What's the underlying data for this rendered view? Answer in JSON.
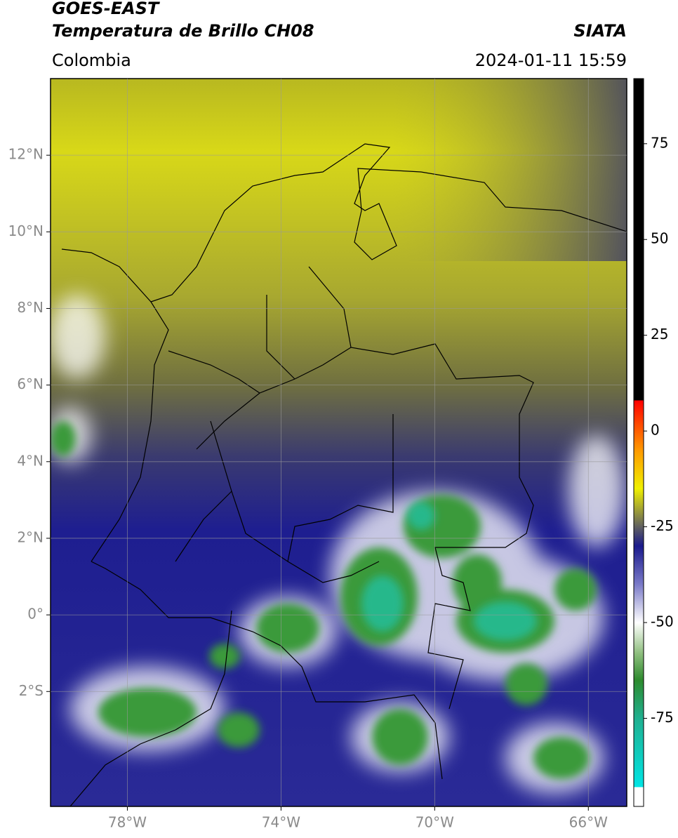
{
  "chart_data": {
    "type": "map",
    "title": "GOES-EAST",
    "subtitle": "Temperatura de Brillo CH08",
    "source": "SIATA",
    "region": "Colombia",
    "datetime": "2024-01-11 15:59",
    "xlim": [
      -80,
      -65
    ],
    "ylim": [
      -5,
      14
    ],
    "xticks": [
      {
        "value": -78,
        "label": "78°W"
      },
      {
        "value": -74,
        "label": "74°W"
      },
      {
        "value": -70,
        "label": "70°W"
      },
      {
        "value": -66,
        "label": "66°W"
      }
    ],
    "yticks": [
      {
        "value": 12,
        "label": "12°N"
      },
      {
        "value": 10,
        "label": "10°N"
      },
      {
        "value": 8,
        "label": "8°N"
      },
      {
        "value": 6,
        "label": "6°N"
      },
      {
        "value": 4,
        "label": "4°N"
      },
      {
        "value": 2,
        "label": "2°N"
      },
      {
        "value": 0,
        "label": "0°"
      },
      {
        "value": -2,
        "label": "2°S"
      }
    ],
    "grid": true,
    "colorbar": {
      "lim": [
        -98,
        92
      ],
      "ticks": [
        75,
        50,
        25,
        0,
        -25,
        -50,
        -75
      ],
      "colormap": [
        [
          -98,
          "#ffffff"
        ],
        [
          -93,
          "#ffffff"
        ],
        [
          -93,
          "#00e5e5"
        ],
        [
          -75,
          "#20b090"
        ],
        [
          -65,
          "#2e8b2e"
        ],
        [
          -58,
          "#8fbf7f"
        ],
        [
          -50,
          "#ffffff"
        ],
        [
          -40,
          "#7a7ac8"
        ],
        [
          -30,
          "#1a1a8c"
        ],
        [
          -25,
          "#606060"
        ],
        [
          -20,
          "#a8a830"
        ],
        [
          -15,
          "#f0f000"
        ],
        [
          -5,
          "#ff9900"
        ],
        [
          8,
          "#ff0000"
        ],
        [
          8,
          "#000000"
        ],
        [
          92,
          "#000000"
        ]
      ]
    }
  }
}
